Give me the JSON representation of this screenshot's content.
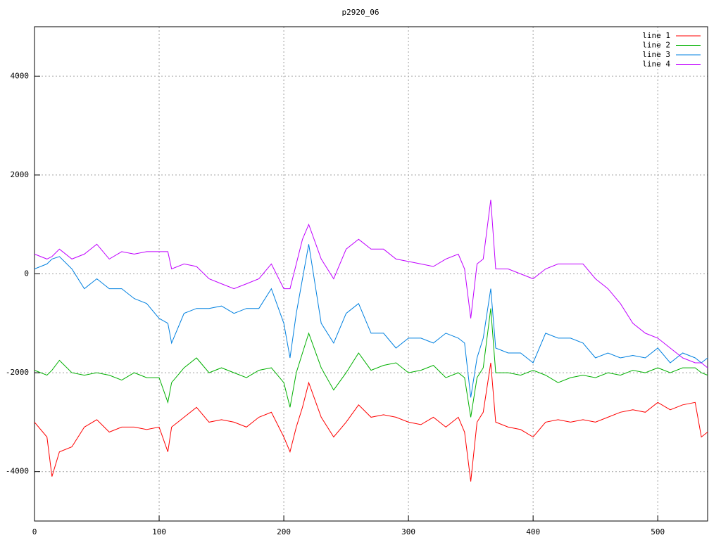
{
  "chart_data": {
    "type": "line",
    "title": "p2920_06",
    "x": [
      0,
      10,
      14,
      20,
      30,
      40,
      50,
      60,
      70,
      80,
      90,
      100,
      107,
      110,
      120,
      130,
      140,
      150,
      160,
      170,
      180,
      190,
      200,
      205,
      210,
      215,
      220,
      230,
      240,
      250,
      260,
      270,
      280,
      290,
      300,
      310,
      320,
      330,
      340,
      345,
      350,
      355,
      360,
      366,
      370,
      380,
      390,
      400,
      410,
      420,
      430,
      440,
      450,
      460,
      470,
      480,
      490,
      500,
      510,
      520,
      530,
      535,
      540
    ],
    "series": [
      {
        "name": "line 1",
        "color": "#ff0000",
        "values": [
          -3000,
          -3300,
          -4100,
          -3600,
          -3500,
          -3100,
          -2950,
          -3200,
          -3100,
          -3100,
          -3150,
          -3100,
          -3600,
          -3100,
          -2900,
          -2700,
          -3000,
          -2950,
          -3000,
          -3100,
          -2900,
          -2800,
          -3300,
          -3600,
          -3100,
          -2700,
          -2200,
          -2900,
          -3300,
          -3000,
          -2650,
          -2900,
          -2850,
          -2900,
          -3000,
          -3050,
          -2900,
          -3100,
          -2900,
          -3200,
          -4200,
          -3000,
          -2800,
          -1800,
          -3000,
          -3100,
          -3150,
          -3300,
          -3000,
          -2950,
          -3000,
          -2950,
          -3000,
          -2900,
          -2800,
          -2750,
          -2800,
          -2600,
          -2750,
          -2650,
          -2600,
          -3300,
          -3200
        ]
      },
      {
        "name": "line 2",
        "color": "#00b000",
        "values": [
          -1950,
          -2050,
          -1950,
          -1750,
          -2000,
          -2050,
          -2000,
          -2050,
          -2150,
          -2000,
          -2100,
          -2100,
          -2600,
          -2200,
          -1900,
          -1700,
          -2000,
          -1900,
          -2000,
          -2100,
          -1950,
          -1900,
          -2200,
          -2700,
          -2000,
          -1600,
          -1200,
          -1900,
          -2350,
          -2000,
          -1600,
          -1950,
          -1850,
          -1800,
          -2000,
          -1950,
          -1850,
          -2100,
          -2000,
          -2100,
          -2900,
          -2100,
          -1900,
          -700,
          -2000,
          -2000,
          -2050,
          -1950,
          -2050,
          -2200,
          -2100,
          -2050,
          -2100,
          -2000,
          -2050,
          -1950,
          -2000,
          -1900,
          -2000,
          -1900,
          -1900,
          -2000,
          -2050
        ]
      },
      {
        "name": "line 3",
        "color": "#0080e0",
        "values": [
          100,
          200,
          300,
          350,
          100,
          -300,
          -100,
          -300,
          -300,
          -500,
          -600,
          -900,
          -1000,
          -1400,
          -800,
          -700,
          -700,
          -650,
          -800,
          -700,
          -700,
          -300,
          -1000,
          -1700,
          -800,
          -100,
          600,
          -1000,
          -1400,
          -800,
          -600,
          -1200,
          -1200,
          -1500,
          -1300,
          -1300,
          -1400,
          -1200,
          -1300,
          -1400,
          -2500,
          -1700,
          -1300,
          -300,
          -1500,
          -1600,
          -1600,
          -1800,
          -1200,
          -1300,
          -1300,
          -1400,
          -1700,
          -1600,
          -1700,
          -1650,
          -1700,
          -1500,
          -1800,
          -1600,
          -1700,
          -1800,
          -1700
        ]
      },
      {
        "name": "line 4",
        "color": "#c000ff",
        "values": [
          400,
          300,
          350,
          500,
          300,
          400,
          600,
          300,
          450,
          400,
          450,
          450,
          450,
          100,
          200,
          150,
          -100,
          -200,
          -300,
          -200,
          -100,
          200,
          -300,
          -300,
          200,
          700,
          1000,
          300,
          -100,
          500,
          700,
          500,
          500,
          300,
          250,
          200,
          150,
          300,
          400,
          100,
          -900,
          200,
          300,
          1500,
          100,
          100,
          0,
          -100,
          100,
          200,
          200,
          200,
          -100,
          -300,
          -600,
          -1000,
          -1200,
          -1300,
          -1500,
          -1700,
          -1800,
          -1800,
          -1900
        ]
      }
    ],
    "xlim": [
      0,
      540
    ],
    "ylim": [
      -5000,
      5000
    ],
    "xticks": [
      0,
      100,
      200,
      300,
      400,
      500
    ],
    "yticks": [
      -4000,
      -2000,
      0,
      2000,
      4000
    ],
    "grid": true,
    "legend": "top-right"
  }
}
